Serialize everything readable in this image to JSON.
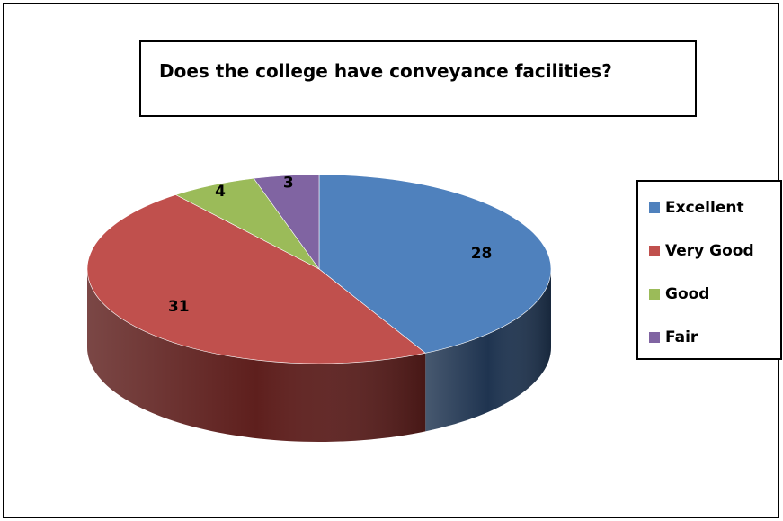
{
  "chart_data": {
    "type": "pie",
    "title": "Does the college have conveyance facilities?",
    "categories": [
      "Excellent",
      "Very Good",
      "Good",
      "Fair"
    ],
    "values": [
      28,
      31,
      4,
      3
    ],
    "colors": [
      "#4f81bd",
      "#c0504d",
      "#9bbb59",
      "#8064a2"
    ],
    "side_colors": [
      "#1f3450",
      "#5e1f1d",
      "#4f6530",
      "#42325a"
    ],
    "data_labels": [
      "28",
      "31",
      "4",
      "3"
    ],
    "legend": {
      "placement": "right",
      "entries": [
        "Excellent",
        "Very Good",
        "Good",
        "Fair"
      ]
    },
    "style": "3d"
  }
}
